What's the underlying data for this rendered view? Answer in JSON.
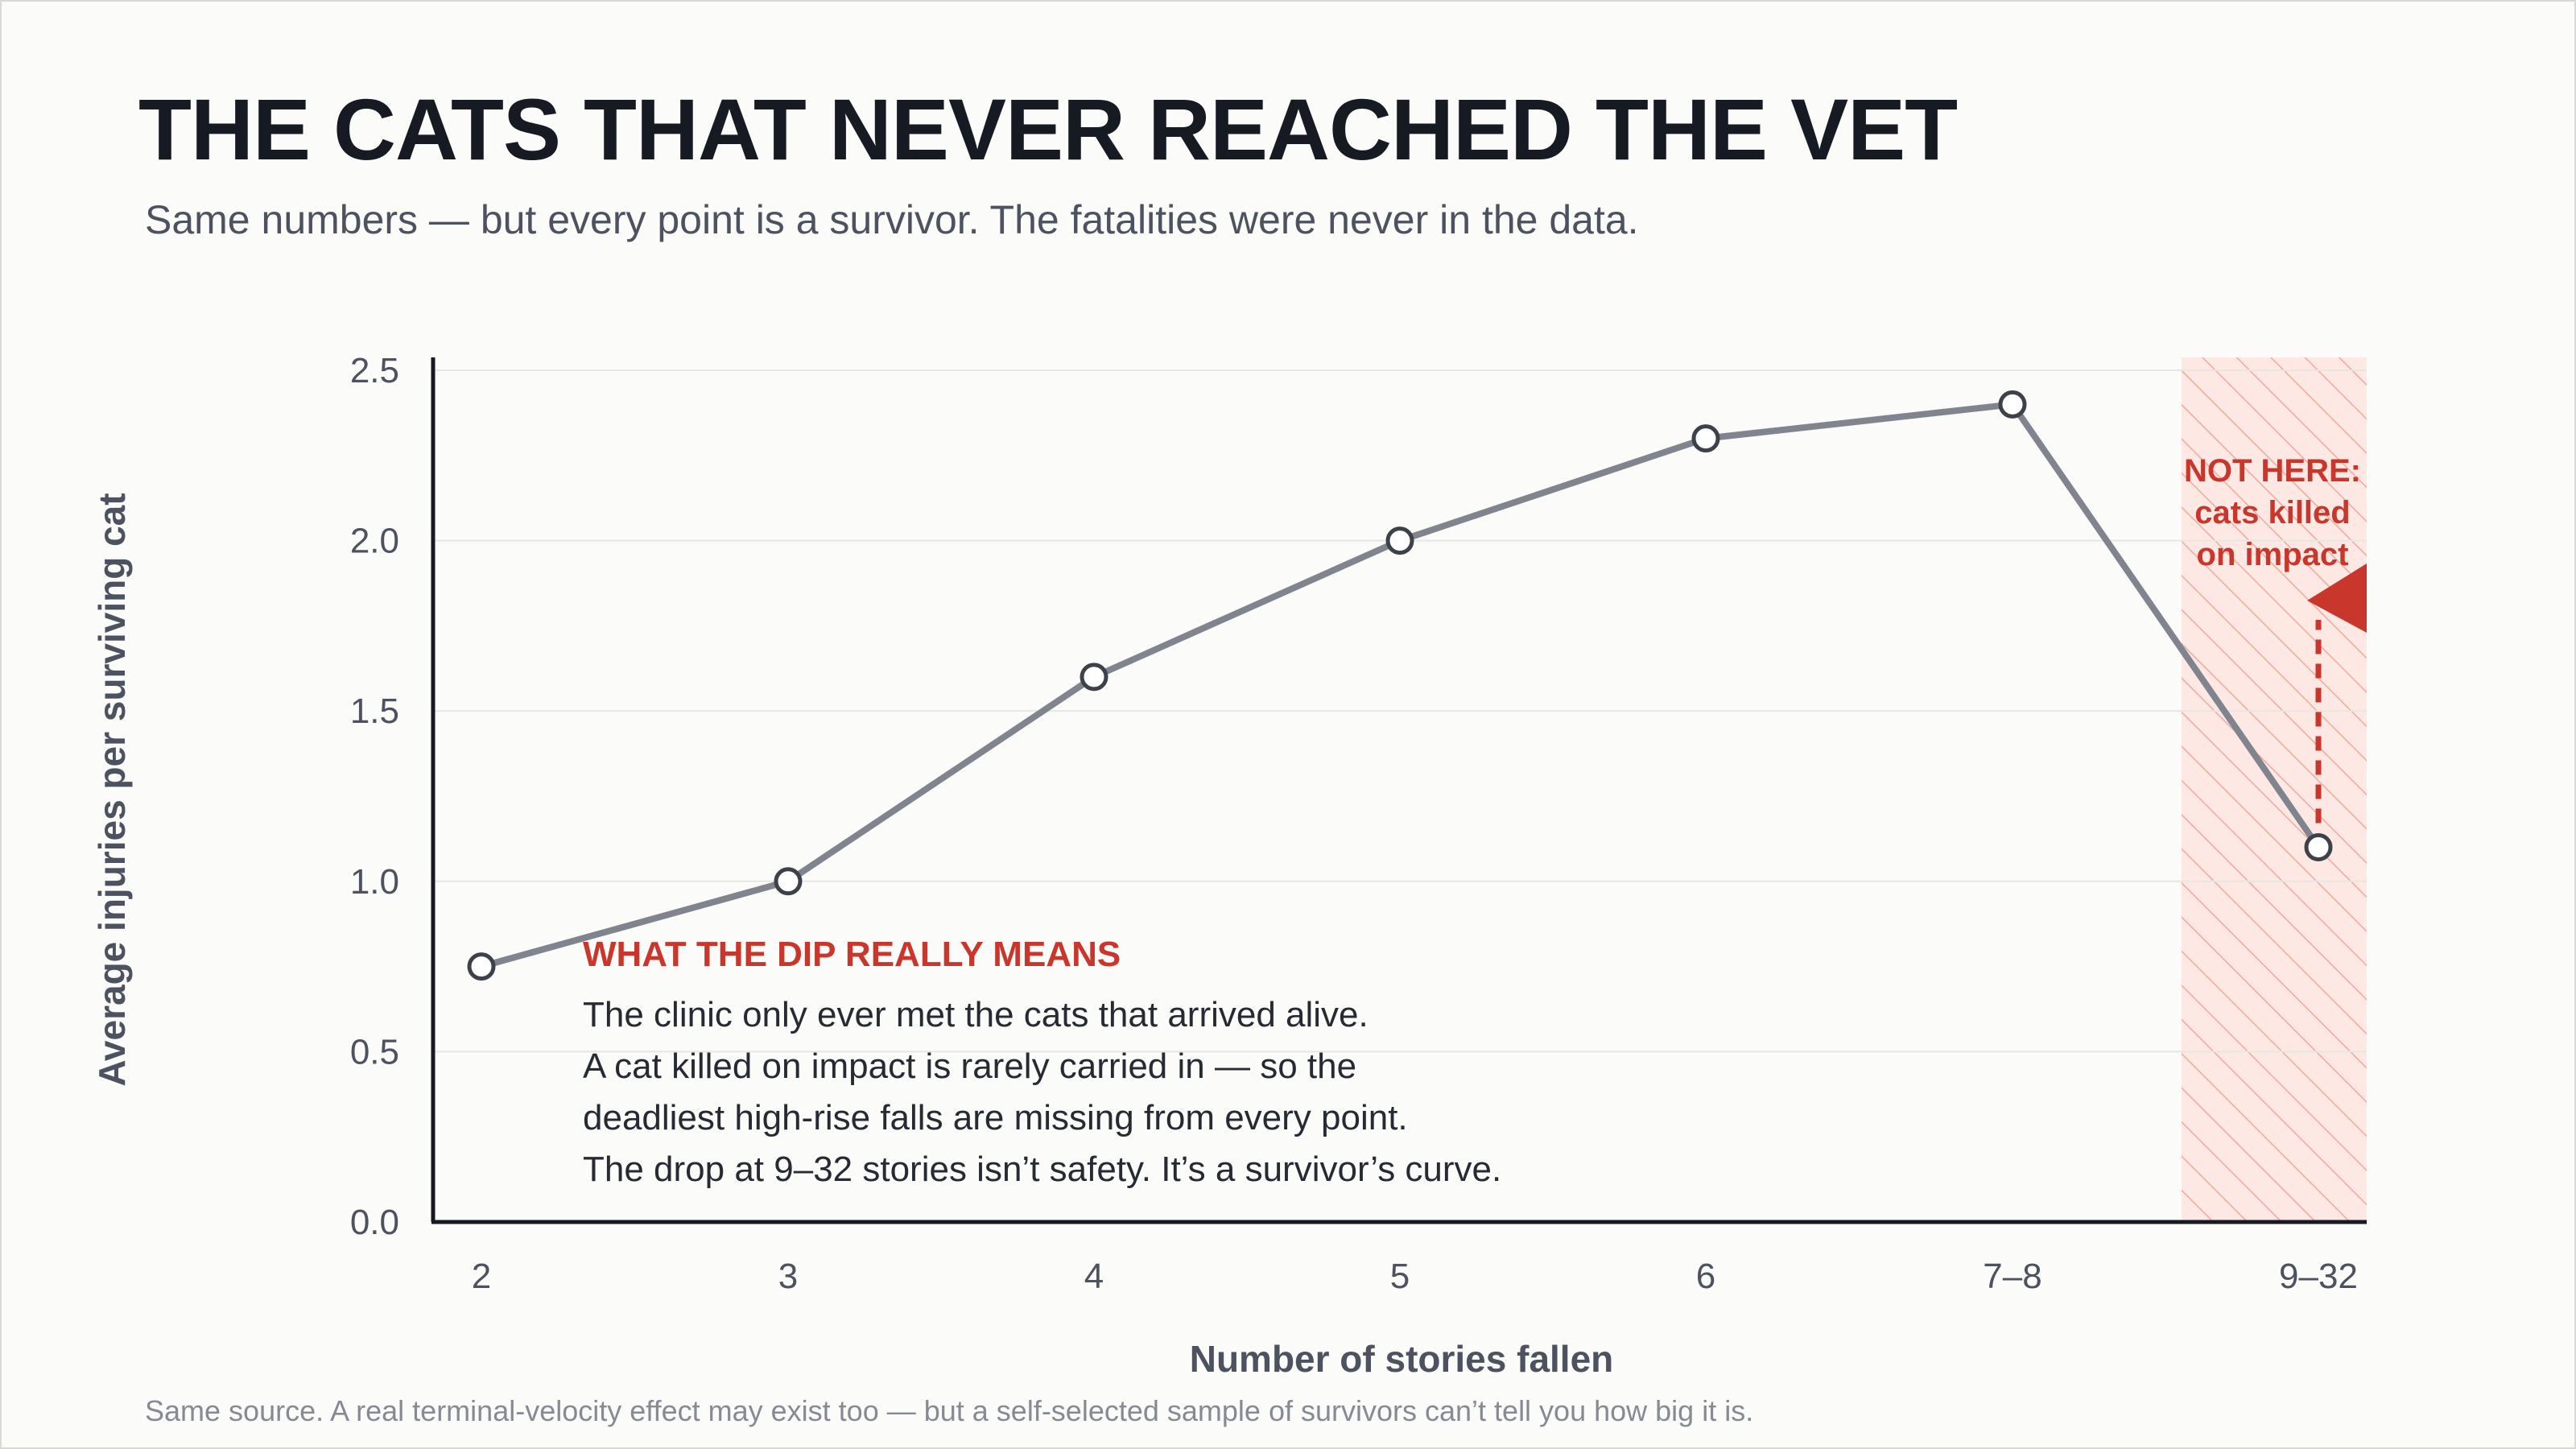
{
  "header": {
    "title": "THE CATS THAT NEVER REACHED THE VET",
    "subtitle": "Same numbers — but every point is a survivor. The fatalities were never in the data."
  },
  "footnote": "Same source. A real terminal-velocity effect may exist too — but a self-selected sample of survivors can’t tell you how big it is.",
  "colors": {
    "line": "#80848e",
    "accent": "#c9372c",
    "band_fill": "#fde8e3",
    "grid": "#e6e6e3",
    "axis": "#161a22"
  },
  "chart_data": {
    "type": "line",
    "categories": [
      "2",
      "3",
      "4",
      "5",
      "6",
      "7–8",
      "9–32"
    ],
    "values": [
      0.75,
      1.0,
      1.6,
      2.0,
      2.3,
      2.4,
      1.1
    ],
    "xlabel": "Number of stories fallen",
    "ylabel": "Average injuries per surviving cat",
    "ylim": [
      0,
      2.5
    ],
    "yticks": [
      "0.0",
      "0.5",
      "1.0",
      "1.5",
      "2.0",
      "2.5"
    ],
    "grid": true,
    "highlight_band": {
      "category": "9–32",
      "label_lines": [
        "NOT HERE:",
        "cats killed",
        "on impact"
      ]
    },
    "callout": {
      "heading": "WHAT THE DIP REALLY MEANS",
      "lines": [
        "The clinic only ever met the cats that arrived alive.",
        "A cat killed on impact is rarely carried in — so the",
        "deadliest high-rise falls are missing from every point.",
        "The drop at 9–32 stories isn’t safety. It’s a survivor’s curve."
      ]
    }
  }
}
